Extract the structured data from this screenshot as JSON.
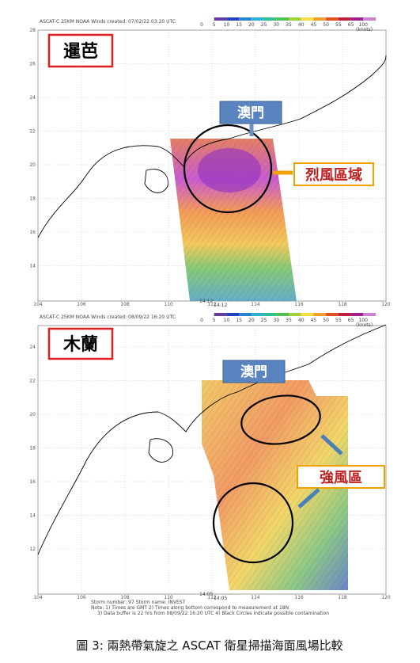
{
  "panels": [
    {
      "header": "ASCAT-C 25KM NOAA Winds created: 07/02/22 03:20 UTC",
      "storm": "暹芭",
      "location": "澳門",
      "annotation": "烈風區域",
      "lat_ticks": [
        "28",
        "26",
        "24",
        "22",
        "20",
        "18",
        "16",
        "14"
      ],
      "lon_ticks": [
        "104",
        "106",
        "108",
        "110",
        "112",
        "114",
        "116",
        "118",
        "120"
      ],
      "time_labels": [
        "14:12",
        "14:12"
      ],
      "colorbar_labels": [
        "0",
        "5",
        "10",
        "15",
        "20",
        "25",
        "30",
        "35",
        "40",
        "45",
        "50",
        "55",
        "65",
        "100"
      ],
      "colorbar_unit": "(knots)"
    },
    {
      "header": "ASCAT-C 25KM NOAA Winds created: 08/09/22 16:20 UTC",
      "storm": "木蘭",
      "location": "澳門",
      "annotation": "強風區",
      "lat_ticks": [
        "24",
        "22",
        "20",
        "18",
        "16",
        "14",
        "12"
      ],
      "lon_ticks": [
        "104",
        "106",
        "108",
        "110",
        "112",
        "114",
        "116",
        "118",
        "120"
      ],
      "time_labels": [
        "14:05",
        "14:05"
      ],
      "colorbar_labels": [
        "0",
        "5",
        "10",
        "15",
        "20",
        "25",
        "30",
        "35",
        "40",
        "45",
        "50",
        "55",
        "65",
        "100"
      ],
      "colorbar_unit": "(knots)"
    }
  ],
  "notes": [
    "Storm number: 97      Storm name: INVEST",
    "Note: 1) Times are GMT  2) Times along bottom correspond to measurement at 18N",
    "3) Data buffer is 22 hrs from 08/09/22 16:20 UTC  4) Black Circles indicate possible contamination"
  ],
  "caption": "圖 3:  兩熱帶氣旋之 ASCAT  衛星掃描海面風場比較"
}
